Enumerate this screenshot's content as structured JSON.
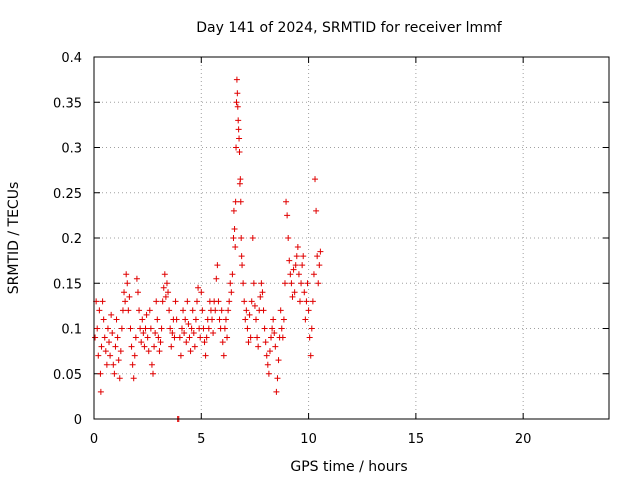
{
  "chart_data": {
    "type": "scatter",
    "title": "Day 141 of 2024, SRMTID for receiver lmmf",
    "xlabel": "GPS time / hours",
    "ylabel": "SRMTID / TECUs",
    "xlim": [
      0,
      24
    ],
    "ylim": [
      0,
      0.4
    ],
    "xticks": [
      0,
      5,
      10,
      15,
      20
    ],
    "yticks": [
      0,
      0.05,
      0.1,
      0.15,
      0.2,
      0.25,
      0.3,
      0.35,
      0.4
    ],
    "xtick_labels": [
      "0",
      "5",
      "10",
      "15",
      "20"
    ],
    "ytick_labels": [
      "0",
      "0.05",
      "0.1",
      "0.15",
      "0.2",
      "0.25",
      "0.3",
      "0.35",
      "0.4"
    ],
    "grid": true,
    "marker": "+",
    "color": "#e00000",
    "series": [
      {
        "name": "SRMTID",
        "points": [
          [
            0.05,
            0.09
          ],
          [
            0.1,
            0.13
          ],
          [
            0.15,
            0.1
          ],
          [
            0.2,
            0.07
          ],
          [
            0.25,
            0.12
          ],
          [
            0.3,
            0.05
          ],
          [
            0.32,
            0.03
          ],
          [
            0.35,
            0.08
          ],
          [
            0.4,
            0.13
          ],
          [
            0.45,
            0.11
          ],
          [
            0.5,
            0.09
          ],
          [
            0.55,
            0.075
          ],
          [
            0.6,
            0.06
          ],
          [
            0.65,
            0.1
          ],
          [
            0.7,
            0.085
          ],
          [
            0.75,
            0.07
          ],
          [
            0.8,
            0.115
          ],
          [
            0.85,
            0.095
          ],
          [
            0.9,
            0.06
          ],
          [
            0.95,
            0.05
          ],
          [
            1.0,
            0.08
          ],
          [
            1.05,
            0.11
          ],
          [
            1.1,
            0.09
          ],
          [
            1.15,
            0.065
          ],
          [
            1.2,
            0.045
          ],
          [
            1.25,
            0.075
          ],
          [
            1.3,
            0.1
          ],
          [
            1.35,
            0.12
          ],
          [
            1.4,
            0.14
          ],
          [
            1.45,
            0.13
          ],
          [
            1.5,
            0.16
          ],
          [
            1.55,
            0.15
          ],
          [
            1.6,
            0.12
          ],
          [
            1.65,
            0.135
          ],
          [
            1.7,
            0.1
          ],
          [
            1.75,
            0.08
          ],
          [
            1.8,
            0.06
          ],
          [
            1.85,
            0.045
          ],
          [
            1.9,
            0.07
          ],
          [
            1.95,
            0.09
          ],
          [
            2.0,
            0.155
          ],
          [
            2.05,
            0.14
          ],
          [
            2.1,
            0.12
          ],
          [
            2.15,
            0.1
          ],
          [
            2.2,
            0.085
          ],
          [
            2.25,
            0.11
          ],
          [
            2.3,
            0.095
          ],
          [
            2.35,
            0.08
          ],
          [
            2.4,
            0.1
          ],
          [
            2.45,
            0.115
          ],
          [
            2.5,
            0.09
          ],
          [
            2.55,
            0.075
          ],
          [
            2.6,
            0.12
          ],
          [
            2.65,
            0.1
          ],
          [
            2.7,
            0.06
          ],
          [
            2.75,
            0.05
          ],
          [
            2.8,
            0.08
          ],
          [
            2.85,
            0.095
          ],
          [
            2.9,
            0.13
          ],
          [
            2.95,
            0.11
          ],
          [
            3.0,
            0.09
          ],
          [
            3.05,
            0.075
          ],
          [
            3.1,
            0.085
          ],
          [
            3.15,
            0.1
          ],
          [
            3.2,
            0.13
          ],
          [
            3.25,
            0.145
          ],
          [
            3.3,
            0.16
          ],
          [
            3.35,
            0.135
          ],
          [
            3.4,
            0.15
          ],
          [
            3.45,
            0.14
          ],
          [
            3.5,
            0.12
          ],
          [
            3.55,
            0.1
          ],
          [
            3.6,
            0.08
          ],
          [
            3.65,
            0.095
          ],
          [
            3.7,
            0.11
          ],
          [
            3.75,
            0.09
          ],
          [
            3.8,
            0.13
          ],
          [
            3.85,
            0.11
          ],
          [
            3.9,
            0.0
          ],
          [
            3.95,
            0.0
          ],
          [
            4.0,
            0.09
          ],
          [
            4.05,
            0.07
          ],
          [
            4.1,
            0.1
          ],
          [
            4.15,
            0.12
          ],
          [
            4.2,
            0.095
          ],
          [
            4.25,
            0.11
          ],
          [
            4.3,
            0.085
          ],
          [
            4.35,
            0.13
          ],
          [
            4.4,
            0.105
          ],
          [
            4.45,
            0.09
          ],
          [
            4.5,
            0.075
          ],
          [
            4.55,
            0.1
          ],
          [
            4.6,
            0.12
          ],
          [
            4.65,
            0.095
          ],
          [
            4.7,
            0.08
          ],
          [
            4.75,
            0.11
          ],
          [
            4.8,
            0.13
          ],
          [
            4.85,
            0.145
          ],
          [
            4.9,
            0.1
          ],
          [
            4.95,
            0.09
          ],
          [
            5.0,
            0.14
          ],
          [
            5.05,
            0.12
          ],
          [
            5.1,
            0.1
          ],
          [
            5.15,
            0.085
          ],
          [
            5.2,
            0.07
          ],
          [
            5.25,
            0.09
          ],
          [
            5.3,
            0.11
          ],
          [
            5.35,
            0.1
          ],
          [
            5.4,
            0.13
          ],
          [
            5.45,
            0.12
          ],
          [
            5.5,
            0.11
          ],
          [
            5.55,
            0.095
          ],
          [
            5.6,
            0.13
          ],
          [
            5.65,
            0.12
          ],
          [
            5.7,
            0.155
          ],
          [
            5.75,
            0.17
          ],
          [
            5.8,
            0.13
          ],
          [
            5.85,
            0.11
          ],
          [
            5.9,
            0.1
          ],
          [
            5.95,
            0.12
          ],
          [
            6.0,
            0.085
          ],
          [
            6.05,
            0.07
          ],
          [
            6.1,
            0.1
          ],
          [
            6.15,
            0.11
          ],
          [
            6.2,
            0.09
          ],
          [
            6.25,
            0.12
          ],
          [
            6.3,
            0.13
          ],
          [
            6.35,
            0.15
          ],
          [
            6.4,
            0.14
          ],
          [
            6.45,
            0.16
          ],
          [
            6.5,
            0.2
          ],
          [
            6.52,
            0.23
          ],
          [
            6.55,
            0.21
          ],
          [
            6.58,
            0.19
          ],
          [
            6.6,
            0.24
          ],
          [
            6.62,
            0.3
          ],
          [
            6.64,
            0.35
          ],
          [
            6.66,
            0.375
          ],
          [
            6.68,
            0.36
          ],
          [
            6.7,
            0.345
          ],
          [
            6.72,
            0.33
          ],
          [
            6.74,
            0.32
          ],
          [
            6.76,
            0.31
          ],
          [
            6.78,
            0.295
          ],
          [
            6.8,
            0.26
          ],
          [
            6.82,
            0.265
          ],
          [
            6.84,
            0.24
          ],
          [
            6.86,
            0.2
          ],
          [
            6.88,
            0.18
          ],
          [
            6.9,
            0.17
          ],
          [
            6.95,
            0.15
          ],
          [
            7.0,
            0.13
          ],
          [
            7.05,
            0.11
          ],
          [
            7.1,
            0.12
          ],
          [
            7.15,
            0.1
          ],
          [
            7.2,
            0.085
          ],
          [
            7.25,
            0.115
          ],
          [
            7.3,
            0.09
          ],
          [
            7.35,
            0.13
          ],
          [
            7.4,
            0.2
          ],
          [
            7.45,
            0.15
          ],
          [
            7.5,
            0.125
          ],
          [
            7.55,
            0.11
          ],
          [
            7.6,
            0.09
          ],
          [
            7.65,
            0.08
          ],
          [
            7.7,
            0.12
          ],
          [
            7.75,
            0.135
          ],
          [
            7.8,
            0.15
          ],
          [
            7.85,
            0.14
          ],
          [
            7.9,
            0.12
          ],
          [
            7.95,
            0.1
          ],
          [
            8.0,
            0.085
          ],
          [
            8.05,
            0.07
          ],
          [
            8.1,
            0.06
          ],
          [
            8.15,
            0.05
          ],
          [
            8.2,
            0.075
          ],
          [
            8.25,
            0.09
          ],
          [
            8.3,
            0.1
          ],
          [
            8.35,
            0.11
          ],
          [
            8.4,
            0.095
          ],
          [
            8.45,
            0.08
          ],
          [
            8.5,
            0.03
          ],
          [
            8.55,
            0.045
          ],
          [
            8.6,
            0.065
          ],
          [
            8.65,
            0.09
          ],
          [
            8.7,
            0.12
          ],
          [
            8.75,
            0.1
          ],
          [
            8.8,
            0.09
          ],
          [
            8.85,
            0.11
          ],
          [
            8.9,
            0.15
          ],
          [
            8.95,
            0.24
          ],
          [
            9.0,
            0.225
          ],
          [
            9.05,
            0.2
          ],
          [
            9.1,
            0.175
          ],
          [
            9.15,
            0.16
          ],
          [
            9.2,
            0.15
          ],
          [
            9.25,
            0.135
          ],
          [
            9.3,
            0.165
          ],
          [
            9.35,
            0.14
          ],
          [
            9.4,
            0.17
          ],
          [
            9.45,
            0.18
          ],
          [
            9.5,
            0.19
          ],
          [
            9.55,
            0.16
          ],
          [
            9.6,
            0.13
          ],
          [
            9.65,
            0.15
          ],
          [
            9.7,
            0.17
          ],
          [
            9.75,
            0.18
          ],
          [
            9.8,
            0.14
          ],
          [
            9.85,
            0.11
          ],
          [
            9.9,
            0.13
          ],
          [
            9.95,
            0.15
          ],
          [
            10.0,
            0.12
          ],
          [
            10.05,
            0.09
          ],
          [
            10.1,
            0.07
          ],
          [
            10.15,
            0.1
          ],
          [
            10.2,
            0.13
          ],
          [
            10.25,
            0.16
          ],
          [
            10.3,
            0.265
          ],
          [
            10.35,
            0.23
          ],
          [
            10.4,
            0.18
          ],
          [
            10.45,
            0.15
          ],
          [
            10.5,
            0.17
          ],
          [
            10.55,
            0.185
          ]
        ]
      }
    ]
  }
}
